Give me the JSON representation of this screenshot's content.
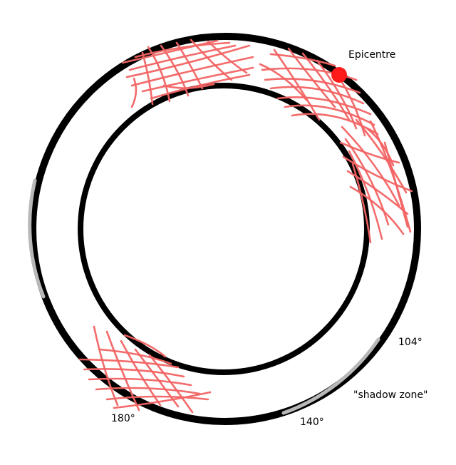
{
  "labels": {
    "epicentre": "Epicentre",
    "angle_104": "104°",
    "shadow_zone": "\"shadow zone\"",
    "angle_140": "140°",
    "angle_180": "180°"
  },
  "colors": {
    "background": "#ffffff",
    "rings": "#000000",
    "waves": "#f26363",
    "epicentre": "#ff1a1a",
    "shadow_zone": "#b8b8b8"
  }
}
